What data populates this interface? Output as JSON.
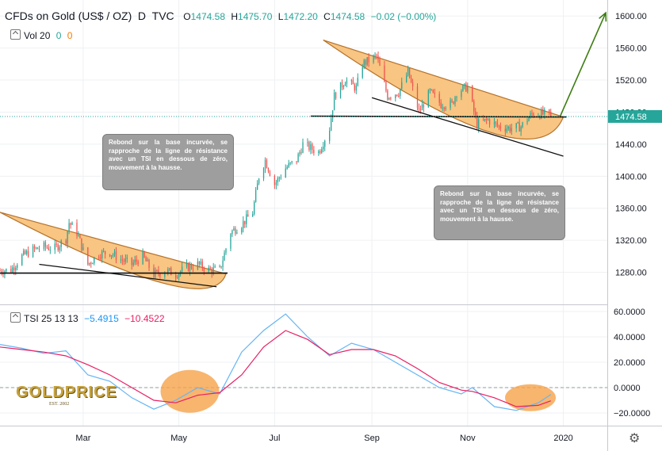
{
  "header": {
    "symbol": "CFDs on Gold (US$ / OZ)",
    "interval": "D",
    "source": "TVC",
    "o_label": "O",
    "o_value": "1474.58",
    "h_label": "H",
    "h_value": "1475.70",
    "l_label": "L",
    "l_value": "1472.20",
    "c_label": "C",
    "c_value": "1474.58",
    "change": "−0.02 (−0.00%)"
  },
  "volume_legend": {
    "name": "Vol 20",
    "v1": "0",
    "v2": "0"
  },
  "tsi_legend": {
    "name": "TSI 25 13 13",
    "tsi_value": "−5.4915",
    "signal_value": "−10.4522"
  },
  "price_tag": "1474.58",
  "callouts": {
    "left": "Rebond sur la base incurvée, se rapproche de la ligne de résistance avec un TSI en dessous de zéro, mouvement à la hausse.",
    "right": "Rebond sur la base incurvée, se rapproche de la ligne de résistance avec un TSI en dessous de zéro, mouvement à la hausse."
  },
  "logo": {
    "text": "GOLDPRICE",
    "sub": "EST. 2002"
  },
  "colors": {
    "up": "#26a69a",
    "down": "#ef5350",
    "cup_fill": "#f8c27c",
    "cup_stroke": "#b26a1d",
    "tsi": "#64b5f6",
    "signal": "#e91e63",
    "price_line": "#26a69a",
    "projection": "#3d7d11",
    "highlight": "#f6a24a"
  },
  "chart_data": [
    {
      "type": "candlestick",
      "title": "CFDs on Gold (US$ / OZ)",
      "ylim": [
        1240,
        1620
      ],
      "y_ticks": [
        1280,
        1320,
        1360,
        1400,
        1440,
        1480,
        1520,
        1560,
        1600
      ],
      "y_tick_labels": [
        "1280.00",
        "1320.00",
        "1360.00",
        "1400.00",
        "1440.00",
        "1480.00",
        "1520.00",
        "1560.00",
        "1600.00"
      ],
      "x_labels": [
        "Mar",
        "May",
        "Jul",
        "Sep",
        "Nov",
        "2020"
      ],
      "x_label_dates": [
        "2019-03-01",
        "2019-05-01",
        "2019-07-01",
        "2019-09-01",
        "2019-11-01",
        "2020-01-01"
      ],
      "xlim": [
        "2019-01-07",
        "2020-01-29"
      ],
      "last_price": 1474.58,
      "price_path": [
        [
          "2019-01-07",
          1282
        ],
        [
          "2019-01-14",
          1283
        ],
        [
          "2019-01-21",
          1300
        ],
        [
          "2019-01-28",
          1308
        ],
        [
          "2019-02-04",
          1312
        ],
        [
          "2019-02-11",
          1310
        ],
        [
          "2019-02-18",
          1322
        ],
        [
          "2019-02-20",
          1342
        ],
        [
          "2019-02-25",
          1330
        ],
        [
          "2019-03-04",
          1290
        ],
        [
          "2019-03-11",
          1303
        ],
        [
          "2019-03-18",
          1305
        ],
        [
          "2019-03-25",
          1296
        ],
        [
          "2019-04-01",
          1290
        ],
        [
          "2019-04-08",
          1300
        ],
        [
          "2019-04-15",
          1277
        ],
        [
          "2019-04-22",
          1282
        ],
        [
          "2019-04-29",
          1278
        ],
        [
          "2019-05-06",
          1286
        ],
        [
          "2019-05-13",
          1290
        ],
        [
          "2019-05-20",
          1283
        ],
        [
          "2019-05-27",
          1283
        ],
        [
          "2019-06-03",
          1330
        ],
        [
          "2019-06-10",
          1340
        ],
        [
          "2019-06-17",
          1355
        ],
        [
          "2019-06-21",
          1400
        ],
        [
          "2019-06-25",
          1420
        ],
        [
          "2019-07-01",
          1390
        ],
        [
          "2019-07-08",
          1410
        ],
        [
          "2019-07-15",
          1420
        ],
        [
          "2019-07-19",
          1440
        ],
        [
          "2019-07-29",
          1430
        ],
        [
          "2019-08-05",
          1460
        ],
        [
          "2019-08-08",
          1500
        ],
        [
          "2019-08-15",
          1520
        ],
        [
          "2019-08-22",
          1510
        ],
        [
          "2019-08-26",
          1540
        ],
        [
          "2019-09-04",
          1550
        ],
        [
          "2019-09-11",
          1500
        ],
        [
          "2019-09-18",
          1505
        ],
        [
          "2019-09-24",
          1530
        ],
        [
          "2019-10-01",
          1480
        ],
        [
          "2019-10-08",
          1505
        ],
        [
          "2019-10-15",
          1490
        ],
        [
          "2019-10-22",
          1490
        ],
        [
          "2019-10-25",
          1505
        ],
        [
          "2019-11-01",
          1512
        ],
        [
          "2019-11-07",
          1465
        ],
        [
          "2019-11-14",
          1470
        ],
        [
          "2019-11-21",
          1462
        ],
        [
          "2019-11-28",
          1460
        ],
        [
          "2019-12-05",
          1462
        ],
        [
          "2019-12-12",
          1478
        ],
        [
          "2019-12-19",
          1478
        ],
        [
          "2019-12-24",
          1474.58
        ]
      ],
      "annotations": {
        "cup_1": {
          "rim_start": [
            "2019-01-07",
            1355
          ],
          "rim_end": [
            "2019-05-31",
            1278
          ],
          "base_low": [
            "2019-04-20",
            1267
          ]
        },
        "cup_2": {
          "rim_start": [
            "2019-08-01",
            1570
          ],
          "rim_end": [
            "2020-01-01",
            1474
          ],
          "base_low": [
            "2019-11-15",
            1455
          ]
        },
        "support_line_1": [
          [
            "2019-01-07",
            1279
          ],
          [
            "2019-06-01",
            1279
          ]
        ],
        "support_line_2": [
          [
            "2019-07-24",
            1475
          ],
          [
            "2020-01-03",
            1474
          ]
        ],
        "lower_line_1": [
          [
            "2019-02-01",
            1290
          ],
          [
            "2019-05-25",
            1262
          ]
        ],
        "lower_line_2": [
          [
            "2019-09-01",
            1498
          ],
          [
            "2020-01-01",
            1425
          ]
        ],
        "projection": [
          [
            "2019-12-30",
            1475
          ],
          [
            "2020-01-28",
            1604
          ]
        ]
      }
    },
    {
      "type": "line",
      "title": "TSI 25 13 13",
      "ylim": [
        -30,
        65
      ],
      "y_ticks": [
        -20,
        0,
        20,
        40,
        60
      ],
      "y_tick_labels": [
        "−20.0000",
        "0.0000",
        "20.0000",
        "40.0000",
        "60.0000"
      ],
      "series": [
        {
          "name": "TSI",
          "values": [
            [
              "2019-01-07",
              34
            ],
            [
              "2019-01-21",
              31
            ],
            [
              "2019-02-04",
              27
            ],
            [
              "2019-02-18",
              29
            ],
            [
              "2019-03-04",
              10
            ],
            [
              "2019-03-18",
              5
            ],
            [
              "2019-04-01",
              -8
            ],
            [
              "2019-04-15",
              -17
            ],
            [
              "2019-04-29",
              -10
            ],
            [
              "2019-05-13",
              0
            ],
            [
              "2019-05-27",
              -5
            ],
            [
              "2019-06-10",
              28
            ],
            [
              "2019-06-24",
              45
            ],
            [
              "2019-07-08",
              58
            ],
            [
              "2019-07-22",
              40
            ],
            [
              "2019-08-05",
              25
            ],
            [
              "2019-08-19",
              35
            ],
            [
              "2019-09-02",
              30
            ],
            [
              "2019-09-16",
              20
            ],
            [
              "2019-09-30",
              10
            ],
            [
              "2019-10-14",
              0
            ],
            [
              "2019-10-28",
              -5
            ],
            [
              "2019-11-04",
              0
            ],
            [
              "2019-11-18",
              -15
            ],
            [
              "2019-12-02",
              -18
            ],
            [
              "2019-12-16",
              -12
            ],
            [
              "2019-12-24",
              -5.4915
            ]
          ]
        },
        {
          "name": "Signal",
          "values": [
            [
              "2019-01-07",
              32
            ],
            [
              "2019-01-21",
              30
            ],
            [
              "2019-02-04",
              28
            ],
            [
              "2019-02-18",
              25
            ],
            [
              "2019-03-04",
              18
            ],
            [
              "2019-03-18",
              10
            ],
            [
              "2019-04-01",
              0
            ],
            [
              "2019-04-15",
              -10
            ],
            [
              "2019-04-29",
              -12
            ],
            [
              "2019-05-13",
              -6
            ],
            [
              "2019-05-27",
              -4
            ],
            [
              "2019-06-10",
              10
            ],
            [
              "2019-06-24",
              32
            ],
            [
              "2019-07-08",
              45
            ],
            [
              "2019-07-22",
              38
            ],
            [
              "2019-08-05",
              26
            ],
            [
              "2019-08-19",
              30
            ],
            [
              "2019-09-02",
              30
            ],
            [
              "2019-09-16",
              25
            ],
            [
              "2019-09-30",
              15
            ],
            [
              "2019-10-14",
              4
            ],
            [
              "2019-10-28",
              -2
            ],
            [
              "2019-11-04",
              -3
            ],
            [
              "2019-11-18",
              -8
            ],
            [
              "2019-12-02",
              -15
            ],
            [
              "2019-12-16",
              -14
            ],
            [
              "2019-12-24",
              -10.4522
            ]
          ]
        }
      ]
    }
  ]
}
